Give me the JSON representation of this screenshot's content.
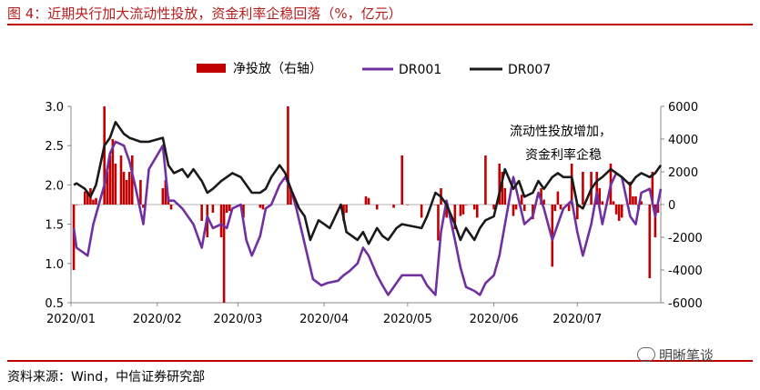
{
  "header": {
    "title": "图 4：近期央行加大流动性投放，资金利率企稳回落（%，亿元）"
  },
  "footer": {
    "source": "资料来源：Wind，中信证券研究部",
    "watermark": "明晰笔谈"
  },
  "chart_data": {
    "type": "bar+line",
    "legend": {
      "position": "top",
      "entries": [
        "净投放（右轴）",
        "DR001",
        "DR007"
      ]
    },
    "annotation": [
      "流动性投放增加，",
      "资金利率企稳"
    ],
    "x_ticks": [
      "2020/01",
      "2020/02",
      "2020/03",
      "2020/04",
      "2020/05",
      "2020/06",
      "2020/07"
    ],
    "x_range": [
      "2020-01-01",
      "2020-07-31"
    ],
    "y_left": {
      "ticks": [
        "3.0",
        "2.5",
        "2.0",
        "1.5",
        "1.0",
        "0.5"
      ],
      "range": [
        0.5,
        3.0
      ]
    },
    "y_right": {
      "ticks": [
        "6000",
        "4000",
        "2000",
        "0",
        "-2000",
        "-4000",
        "-6000"
      ],
      "range": [
        -6000,
        6000
      ]
    },
    "colors": {
      "bars": "#c00000",
      "DR001": "#7030a0",
      "DR007": "#1a1a1a",
      "title": "#b71c1c"
    },
    "bars": [
      [
        "2020-01-02",
        -4000
      ],
      [
        "2020-01-03",
        0
      ],
      [
        "2020-01-06",
        800
      ],
      [
        "2020-01-07",
        800
      ],
      [
        "2020-01-08",
        1000
      ],
      [
        "2020-01-09",
        300
      ],
      [
        "2020-01-10",
        400
      ],
      [
        "2020-01-13",
        6000
      ],
      [
        "2020-01-14",
        2000
      ],
      [
        "2020-01-15",
        3000
      ],
      [
        "2020-01-16",
        4000
      ],
      [
        "2020-01-17",
        2500
      ],
      [
        "2020-01-19",
        3000
      ],
      [
        "2020-01-20",
        2000
      ],
      [
        "2020-01-21",
        1500
      ],
      [
        "2020-01-22",
        2000
      ],
      [
        "2020-01-23",
        3000
      ],
      [
        "2020-01-26",
        1500
      ],
      [
        "2020-01-27",
        -200
      ],
      [
        "2020-02-03",
        1000
      ],
      [
        "2020-02-04",
        1500
      ],
      [
        "2020-02-05",
        500
      ],
      [
        "2020-02-06",
        -300
      ],
      [
        "2020-02-17",
        -1000
      ],
      [
        "2020-02-19",
        -2000
      ],
      [
        "2020-02-21",
        -500
      ],
      [
        "2020-02-24",
        -2000
      ],
      [
        "2020-02-25",
        -6000
      ],
      [
        "2020-02-26",
        -500
      ],
      [
        "2020-02-27",
        -400
      ],
      [
        "2020-03-03",
        -800
      ],
      [
        "2020-03-09",
        -200
      ],
      [
        "2020-03-10",
        -300
      ],
      [
        "2020-03-19",
        6000
      ],
      [
        "2020-03-20",
        1000
      ],
      [
        "2020-04-08",
        -1000
      ],
      [
        "2020-04-09",
        -500
      ],
      [
        "2020-04-16",
        500
      ],
      [
        "2020-04-17",
        400
      ],
      [
        "2020-04-20",
        -300
      ],
      [
        "2020-04-26",
        -200
      ],
      [
        "2020-04-29",
        3000
      ],
      [
        "2020-05-01",
        0
      ],
      [
        "2020-05-06",
        -800
      ],
      [
        "2020-05-11",
        0
      ],
      [
        "2020-05-12",
        -2200
      ],
      [
        "2020-05-13",
        1000
      ],
      [
        "2020-05-15",
        -800
      ],
      [
        "2020-05-18",
        -1500
      ],
      [
        "2020-05-20",
        -700
      ],
      [
        "2020-05-21",
        -600
      ],
      [
        "2020-05-22",
        0
      ],
      [
        "2020-05-25",
        -300
      ],
      [
        "2020-05-26",
        -800
      ],
      [
        "2020-05-29",
        3000
      ],
      [
        "2020-06-01",
        -300
      ],
      [
        "2020-06-03",
        2500
      ],
      [
        "2020-06-04",
        2000
      ],
      [
        "2020-06-05",
        1000
      ],
      [
        "2020-06-08",
        -700
      ],
      [
        "2020-06-09",
        -300
      ],
      [
        "2020-06-11",
        600
      ],
      [
        "2020-06-12",
        -400
      ],
      [
        "2020-06-15",
        -900
      ],
      [
        "2020-06-18",
        1000
      ],
      [
        "2020-06-19",
        300
      ],
      [
        "2020-06-22",
        -3800
      ],
      [
        "2020-06-23",
        -400
      ],
      [
        "2020-06-24",
        800
      ],
      [
        "2020-06-25",
        -300
      ],
      [
        "2020-06-28",
        -400
      ],
      [
        "2020-06-29",
        2500
      ],
      [
        "2020-07-01",
        -900
      ],
      [
        "2020-07-03",
        2000
      ],
      [
        "2020-07-06",
        2000
      ],
      [
        "2020-07-08",
        2000
      ],
      [
        "2020-07-09",
        1000
      ],
      [
        "2020-07-10",
        200
      ],
      [
        "2020-07-13",
        2500
      ],
      [
        "2020-07-14",
        200
      ],
      [
        "2020-07-15",
        -600
      ],
      [
        "2020-07-16",
        -1000
      ],
      [
        "2020-07-17",
        -800
      ],
      [
        "2020-07-20",
        1400
      ],
      [
        "2020-07-21",
        500
      ],
      [
        "2020-07-22",
        500
      ],
      [
        "2020-07-23",
        -300
      ],
      [
        "2020-07-24",
        200
      ],
      [
        "2020-07-27",
        -4500
      ],
      [
        "2020-07-28",
        2000
      ],
      [
        "2020-07-29",
        -2000
      ],
      [
        "2020-07-30",
        -500
      ]
    ],
    "series": [
      {
        "name": "DR001",
        "points": [
          [
            "2020-01-02",
            1.45
          ],
          [
            "2020-01-03",
            1.2
          ],
          [
            "2020-01-07",
            1.1
          ],
          [
            "2020-01-09",
            1.5
          ],
          [
            "2020-01-13",
            2.0
          ],
          [
            "2020-01-15",
            2.4
          ],
          [
            "2020-01-17",
            2.55
          ],
          [
            "2020-01-20",
            2.5
          ],
          [
            "2020-01-22",
            2.3
          ],
          [
            "2020-01-24",
            2.0
          ],
          [
            "2020-01-27",
            1.5
          ],
          [
            "2020-01-29",
            2.2
          ],
          [
            "2020-02-03",
            2.5
          ],
          [
            "2020-02-05",
            1.8
          ],
          [
            "2020-02-07",
            1.8
          ],
          [
            "2020-02-10",
            1.7
          ],
          [
            "2020-02-12",
            1.6
          ],
          [
            "2020-02-14",
            1.5
          ],
          [
            "2020-02-17",
            1.2
          ],
          [
            "2020-02-19",
            1.6
          ],
          [
            "2020-02-21",
            1.45
          ],
          [
            "2020-02-24",
            1.5
          ],
          [
            "2020-02-26",
            1.45
          ],
          [
            "2020-02-28",
            1.7
          ],
          [
            "2020-03-02",
            1.75
          ],
          [
            "2020-03-04",
            1.3
          ],
          [
            "2020-03-06",
            1.1
          ],
          [
            "2020-03-09",
            1.35
          ],
          [
            "2020-03-11",
            1.7
          ],
          [
            "2020-03-13",
            1.75
          ],
          [
            "2020-03-16",
            2.0
          ],
          [
            "2020-03-18",
            2.1
          ],
          [
            "2020-03-20",
            1.95
          ],
          [
            "2020-03-22",
            1.7
          ],
          [
            "2020-03-24",
            1.4
          ],
          [
            "2020-03-26",
            1.1
          ],
          [
            "2020-03-28",
            0.8
          ],
          [
            "2020-03-31",
            0.72
          ],
          [
            "2020-04-02",
            0.75
          ],
          [
            "2020-04-06",
            0.78
          ],
          [
            "2020-04-08",
            0.85
          ],
          [
            "2020-04-10",
            0.9
          ],
          [
            "2020-04-13",
            1.0
          ],
          [
            "2020-04-15",
            1.2
          ],
          [
            "2020-04-17",
            1.1
          ],
          [
            "2020-04-20",
            0.85
          ],
          [
            "2020-04-22",
            0.72
          ],
          [
            "2020-04-24",
            0.6
          ],
          [
            "2020-04-27",
            0.75
          ],
          [
            "2020-04-29",
            0.85
          ],
          [
            "2020-05-01",
            0.85
          ],
          [
            "2020-05-06",
            0.85
          ],
          [
            "2020-05-08",
            0.72
          ],
          [
            "2020-05-11",
            0.6
          ],
          [
            "2020-05-13",
            1.4
          ],
          [
            "2020-05-15",
            1.8
          ],
          [
            "2020-05-18",
            1.3
          ],
          [
            "2020-05-20",
            0.95
          ],
          [
            "2020-05-22",
            0.7
          ],
          [
            "2020-05-25",
            0.65
          ],
          [
            "2020-05-27",
            0.6
          ],
          [
            "2020-05-29",
            0.75
          ],
          [
            "2020-06-01",
            0.85
          ],
          [
            "2020-06-03",
            1.1
          ],
          [
            "2020-06-05",
            1.5
          ],
          [
            "2020-06-08",
            2.1
          ],
          [
            "2020-06-10",
            1.8
          ],
          [
            "2020-06-12",
            1.5
          ],
          [
            "2020-06-15",
            1.6
          ],
          [
            "2020-06-17",
            1.9
          ],
          [
            "2020-06-19",
            1.7
          ],
          [
            "2020-06-22",
            1.3
          ],
          [
            "2020-06-24",
            1.5
          ],
          [
            "2020-06-26",
            1.7
          ],
          [
            "2020-06-29",
            1.8
          ],
          [
            "2020-07-01",
            1.4
          ],
          [
            "2020-07-03",
            1.1
          ],
          [
            "2020-07-06",
            1.5
          ],
          [
            "2020-07-08",
            1.9
          ],
          [
            "2020-07-10",
            1.5
          ],
          [
            "2020-07-13",
            2.0
          ],
          [
            "2020-07-15",
            2.15
          ],
          [
            "2020-07-17",
            2.1
          ],
          [
            "2020-07-20",
            1.6
          ],
          [
            "2020-07-22",
            1.5
          ],
          [
            "2020-07-24",
            1.9
          ],
          [
            "2020-07-27",
            1.95
          ],
          [
            "2020-07-29",
            1.6
          ],
          [
            "2020-07-31",
            1.95
          ]
        ]
      },
      {
        "name": "DR007",
        "points": [
          [
            "2020-01-02",
            2.0
          ],
          [
            "2020-01-03",
            2.02
          ],
          [
            "2020-01-06",
            1.95
          ],
          [
            "2020-01-08",
            1.85
          ],
          [
            "2020-01-10",
            2.0
          ],
          [
            "2020-01-13",
            2.5
          ],
          [
            "2020-01-15",
            2.6
          ],
          [
            "2020-01-17",
            2.8
          ],
          [
            "2020-01-20",
            2.65
          ],
          [
            "2020-01-22",
            2.6
          ],
          [
            "2020-01-26",
            2.55
          ],
          [
            "2020-01-29",
            2.55
          ],
          [
            "2020-02-03",
            2.6
          ],
          [
            "2020-02-05",
            2.25
          ],
          [
            "2020-02-07",
            2.15
          ],
          [
            "2020-02-10",
            2.2
          ],
          [
            "2020-02-12",
            2.1
          ],
          [
            "2020-02-14",
            2.2
          ],
          [
            "2020-02-17",
            2.05
          ],
          [
            "2020-02-19",
            1.9
          ],
          [
            "2020-02-21",
            1.95
          ],
          [
            "2020-02-24",
            2.05
          ],
          [
            "2020-02-26",
            2.1
          ],
          [
            "2020-02-28",
            2.15
          ],
          [
            "2020-03-02",
            2.1
          ],
          [
            "2020-03-04",
            2.0
          ],
          [
            "2020-03-06",
            1.9
          ],
          [
            "2020-03-09",
            1.9
          ],
          [
            "2020-03-11",
            1.95
          ],
          [
            "2020-03-13",
            2.1
          ],
          [
            "2020-03-16",
            2.25
          ],
          [
            "2020-03-18",
            2.15
          ],
          [
            "2020-03-20",
            1.95
          ],
          [
            "2020-03-23",
            1.7
          ],
          [
            "2020-03-25",
            1.6
          ],
          [
            "2020-03-27",
            1.3
          ],
          [
            "2020-03-30",
            1.55
          ],
          [
            "2020-04-01",
            1.5
          ],
          [
            "2020-04-03",
            1.45
          ],
          [
            "2020-04-07",
            1.75
          ],
          [
            "2020-04-09",
            1.4
          ],
          [
            "2020-04-13",
            1.3
          ],
          [
            "2020-04-15",
            1.4
          ],
          [
            "2020-04-17",
            1.25
          ],
          [
            "2020-04-20",
            1.45
          ],
          [
            "2020-04-22",
            1.35
          ],
          [
            "2020-04-24",
            1.3
          ],
          [
            "2020-04-27",
            1.45
          ],
          [
            "2020-04-29",
            1.5
          ],
          [
            "2020-05-06",
            1.45
          ],
          [
            "2020-05-08",
            1.6
          ],
          [
            "2020-05-11",
            1.9
          ],
          [
            "2020-05-13",
            1.85
          ],
          [
            "2020-05-15",
            1.75
          ],
          [
            "2020-05-18",
            1.5
          ],
          [
            "2020-05-20",
            1.3
          ],
          [
            "2020-05-22",
            1.45
          ],
          [
            "2020-05-25",
            1.3
          ],
          [
            "2020-05-27",
            1.45
          ],
          [
            "2020-05-29",
            1.55
          ],
          [
            "2020-06-01",
            1.6
          ],
          [
            "2020-06-03",
            1.9
          ],
          [
            "2020-06-05",
            2.2
          ],
          [
            "2020-06-08",
            1.95
          ],
          [
            "2020-06-10",
            2.05
          ],
          [
            "2020-06-12",
            1.85
          ],
          [
            "2020-06-15",
            1.9
          ],
          [
            "2020-06-17",
            2.05
          ],
          [
            "2020-06-19",
            1.95
          ],
          [
            "2020-06-22",
            2.1
          ],
          [
            "2020-06-24",
            2.15
          ],
          [
            "2020-06-26",
            2.1
          ],
          [
            "2020-06-29",
            2.1
          ],
          [
            "2020-07-01",
            1.75
          ],
          [
            "2020-07-03",
            1.7
          ],
          [
            "2020-07-06",
            1.95
          ],
          [
            "2020-07-08",
            2.05
          ],
          [
            "2020-07-10",
            2.1
          ],
          [
            "2020-07-13",
            2.2
          ],
          [
            "2020-07-15",
            2.15
          ],
          [
            "2020-07-17",
            2.1
          ],
          [
            "2020-07-20",
            2.0
          ],
          [
            "2020-07-22",
            2.1
          ],
          [
            "2020-07-24",
            2.15
          ],
          [
            "2020-07-27",
            2.1
          ],
          [
            "2020-07-29",
            2.15
          ],
          [
            "2020-07-31",
            2.25
          ]
        ]
      }
    ]
  }
}
